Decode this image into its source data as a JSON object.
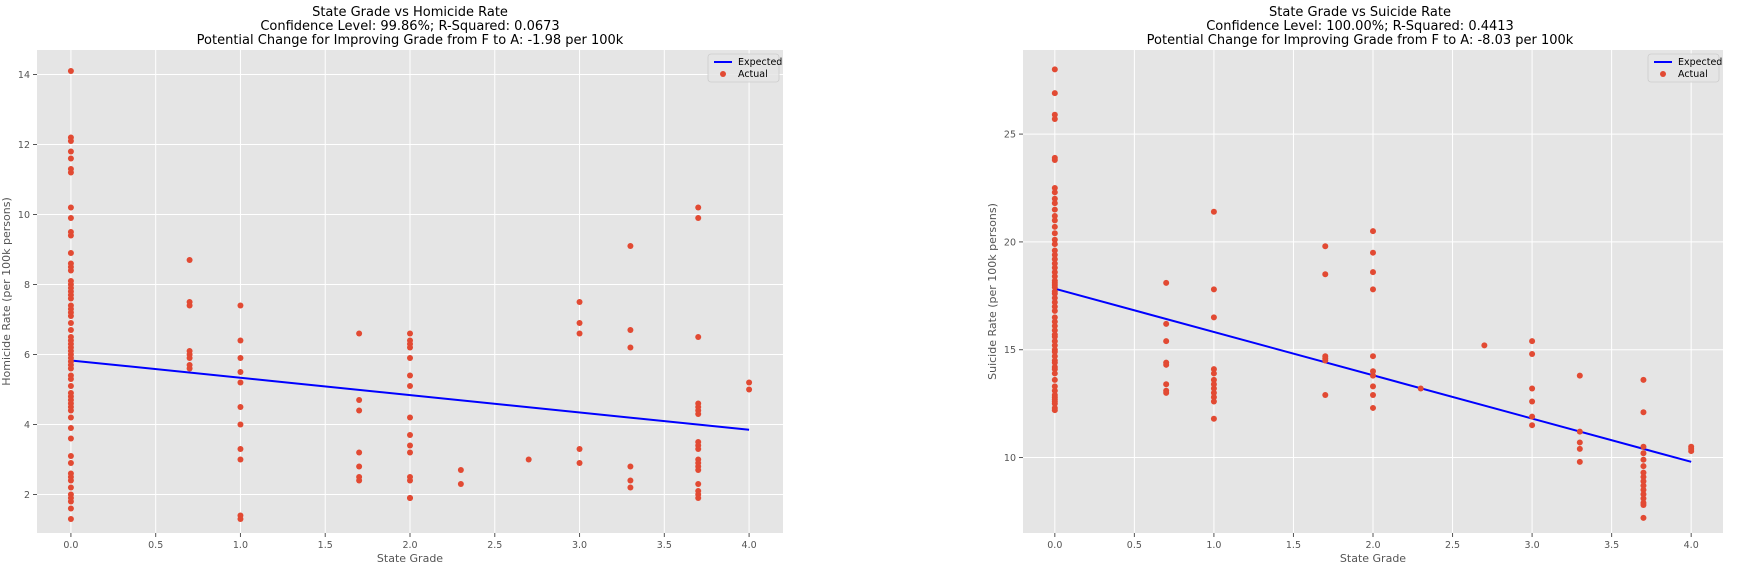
{
  "colors": {
    "panel_bg": "#e5e5e5",
    "grid": "#ffffff",
    "line": "#0000ff",
    "points": "#e24a33",
    "text": "#555555"
  },
  "chart_data": [
    {
      "type": "scatter",
      "title": [
        "State Grade vs Homicide Rate",
        "Confidence Level: 99.86%; R-Squared: 0.0673",
        "Potential Change for Improving Grade from F to A: -1.98 per 100k"
      ],
      "xlabel": "State Grade",
      "ylabel": "Homicide Rate (per 100k persons)",
      "xlim": [
        -0.2,
        4.2
      ],
      "ylim": [
        0.9,
        14.7
      ],
      "xticks": [
        0.0,
        0.5,
        1.0,
        1.5,
        2.0,
        2.5,
        3.0,
        3.5,
        4.0
      ],
      "xtick_labels": [
        "0.0",
        "0.5",
        "1.0",
        "1.5",
        "2.0",
        "2.5",
        "3.0",
        "3.5",
        "4.0"
      ],
      "yticks": [
        2,
        4,
        6,
        8,
        10,
        12,
        14
      ],
      "ytick_labels": [
        "2",
        "4",
        "6",
        "8",
        "10",
        "12",
        "14"
      ],
      "grid": true,
      "legend": {
        "placement": "top-right",
        "entries": [
          "Expected",
          "Actual"
        ]
      },
      "series": [
        {
          "name": "Expected",
          "kind": "line",
          "x": [
            0.0,
            4.0
          ],
          "y": [
            5.83,
            3.85
          ]
        },
        {
          "name": "Actual",
          "kind": "scatter",
          "x": [
            0,
            0,
            0,
            0,
            0,
            0,
            0,
            0,
            0,
            0,
            0,
            0,
            0,
            0,
            0,
            0,
            0,
            0,
            0,
            0,
            0,
            0,
            0,
            0,
            0,
            0,
            0,
            0,
            0,
            0,
            0,
            0,
            0,
            0,
            0,
            0,
            0,
            0,
            0,
            0,
            0,
            0,
            0,
            0,
            0,
            0,
            0,
            0,
            0,
            0,
            0,
            0,
            0,
            0,
            0,
            0,
            0,
            0,
            0,
            0,
            0.7,
            0.7,
            0.7,
            0.7,
            0.7,
            0.7,
            0.7,
            0.7,
            1,
            1,
            1,
            1,
            1,
            1,
            1,
            1,
            1,
            1,
            1,
            1.7,
            1.7,
            1.7,
            1.7,
            1.7,
            1.7,
            1.7,
            2,
            2,
            2,
            2,
            2,
            2,
            2,
            2,
            2,
            2,
            2,
            2,
            2,
            2,
            2,
            2.3,
            2.3,
            2.7,
            3,
            3,
            3,
            3,
            3,
            3.3,
            3.3,
            3.3,
            3.3,
            3.3,
            3.3,
            3.7,
            3.7,
            3.7,
            3.7,
            3.7,
            3.7,
            3.7,
            3.7,
            3.7,
            3.7,
            3.7,
            3.7,
            3.7,
            3.7,
            3.7,
            3.7,
            3.7,
            3.7,
            4,
            4
          ],
          "y": [
            14.1,
            12.2,
            12.1,
            11.8,
            11.6,
            11.3,
            11.2,
            10.2,
            9.9,
            9.5,
            9.4,
            8.9,
            8.6,
            8.5,
            8.4,
            8.1,
            8.0,
            7.9,
            7.8,
            7.7,
            7.6,
            7.4,
            7.3,
            7.2,
            7.1,
            6.9,
            6.7,
            6.5,
            6.4,
            6.3,
            6.2,
            6.1,
            6.0,
            5.9,
            5.8,
            5.7,
            5.6,
            5.4,
            5.3,
            5.1,
            4.9,
            4.8,
            4.7,
            4.6,
            4.5,
            4.4,
            4.2,
            3.9,
            3.6,
            3.1,
            2.9,
            2.6,
            2.5,
            2.4,
            2.2,
            2.0,
            1.9,
            1.8,
            1.6,
            1.3,
            8.7,
            7.5,
            7.4,
            6.1,
            6.0,
            5.9,
            5.7,
            5.6,
            7.4,
            6.4,
            5.9,
            5.5,
            5.2,
            4.5,
            4.0,
            3.3,
            3.0,
            1.4,
            1.3,
            6.6,
            4.7,
            4.4,
            3.2,
            2.8,
            2.5,
            2.4,
            6.6,
            6.4,
            6.3,
            6.2,
            5.9,
            5.4,
            5.1,
            4.2,
            3.7,
            3.4,
            3.2,
            2.5,
            2.4,
            1.9,
            1.9,
            2.7,
            2.3,
            3.0,
            7.5,
            6.9,
            6.6,
            3.3,
            2.9,
            9.1,
            6.7,
            6.2,
            2.8,
            2.4,
            2.2,
            10.2,
            9.9,
            6.5,
            4.6,
            4.5,
            4.4,
            4.3,
            3.5,
            3.4,
            3.3,
            3.0,
            2.9,
            2.8,
            2.7,
            2.3,
            2.1,
            2.0,
            1.9,
            5.2,
            5.0
          ]
        }
      ]
    },
    {
      "type": "scatter",
      "title": [
        "State Grade vs Suicide Rate",
        "Confidence Level: 100.00%; R-Squared: 0.4413",
        "Potential Change for Improving Grade from F to A: -8.03 per 100k"
      ],
      "xlabel": "State Grade",
      "ylabel": "Suicide Rate (per 100k persons)",
      "xlim": [
        -0.2,
        4.2
      ],
      "ylim": [
        6.5,
        28.9
      ],
      "xticks": [
        0.0,
        0.5,
        1.0,
        1.5,
        2.0,
        2.5,
        3.0,
        3.5,
        4.0
      ],
      "xtick_labels": [
        "0.0",
        "0.5",
        "1.0",
        "1.5",
        "2.0",
        "2.5",
        "3.0",
        "3.5",
        "4.0"
      ],
      "yticks": [
        10,
        15,
        20,
        25
      ],
      "ytick_labels": [
        "10",
        "15",
        "20",
        "25"
      ],
      "grid": true,
      "legend": {
        "placement": "top-right",
        "entries": [
          "Expected",
          "Actual"
        ]
      },
      "series": [
        {
          "name": "Expected",
          "kind": "line",
          "x": [
            0.0,
            4.0
          ],
          "y": [
            17.83,
            9.8
          ]
        },
        {
          "name": "Actual",
          "kind": "scatter",
          "x": [
            0,
            0,
            0,
            0,
            0,
            0,
            0,
            0,
            0,
            0,
            0,
            0,
            0,
            0,
            0,
            0,
            0,
            0,
            0,
            0,
            0,
            0,
            0,
            0,
            0,
            0,
            0,
            0,
            0,
            0,
            0,
            0,
            0,
            0,
            0,
            0,
            0,
            0,
            0,
            0,
            0,
            0,
            0,
            0,
            0,
            0,
            0,
            0,
            0,
            0,
            0,
            0,
            0,
            0,
            0,
            0,
            0,
            0,
            0,
            0,
            0.7,
            0.7,
            0.7,
            0.7,
            0.7,
            0.7,
            0.7,
            0.7,
            1,
            1,
            1,
            1,
            1,
            1,
            1,
            1,
            1,
            1,
            1,
            1,
            1.7,
            1.7,
            1.7,
            1.7,
            1.7,
            1.7,
            2,
            2,
            2,
            2,
            2,
            2,
            2,
            2,
            2,
            2,
            2.3,
            2.7,
            3,
            3,
            3,
            3,
            3,
            3,
            3.3,
            3.3,
            3.3,
            3.3,
            3.3,
            3.7,
            3.7,
            3.7,
            3.7,
            3.7,
            3.7,
            3.7,
            3.7,
            3.7,
            3.7,
            3.7,
            3.7,
            3.7,
            3.7,
            3.7,
            3.7,
            4,
            4,
            4
          ],
          "y": [
            28.0,
            26.9,
            25.9,
            25.7,
            23.9,
            23.8,
            22.5,
            22.3,
            22.0,
            21.8,
            21.5,
            21.2,
            21.0,
            20.7,
            20.4,
            20.1,
            19.9,
            19.6,
            19.4,
            19.2,
            19.0,
            18.8,
            18.6,
            18.4,
            18.2,
            18.1,
            18.0,
            17.9,
            17.7,
            17.6,
            17.4,
            17.2,
            17.0,
            16.8,
            16.5,
            16.3,
            16.1,
            15.9,
            15.7,
            15.6,
            15.4,
            15.2,
            15.0,
            14.9,
            14.7,
            14.5,
            14.4,
            14.2,
            14.1,
            13.9,
            13.6,
            13.3,
            13.1,
            12.9,
            12.8,
            12.7,
            12.6,
            12.5,
            12.3,
            12.2,
            18.1,
            16.2,
            15.4,
            14.4,
            14.3,
            13.4,
            13.1,
            13.0,
            21.4,
            17.8,
            16.5,
            14.1,
            13.9,
            13.6,
            13.4,
            13.2,
            13.0,
            12.8,
            12.6,
            11.8,
            19.8,
            18.5,
            14.7,
            14.6,
            14.5,
            12.9,
            20.5,
            19.5,
            18.6,
            17.8,
            14.7,
            14.0,
            13.8,
            13.3,
            12.9,
            12.3,
            13.2,
            15.2,
            15.4,
            14.8,
            13.2,
            12.6,
            11.9,
            11.5,
            13.8,
            11.2,
            10.7,
            10.4,
            9.8,
            13.6,
            12.1,
            10.5,
            10.2,
            9.9,
            9.6,
            9.3,
            9.1,
            8.9,
            8.7,
            8.5,
            8.3,
            8.1,
            7.9,
            7.8,
            7.2,
            10.5,
            10.4,
            10.3
          ]
        }
      ]
    }
  ]
}
